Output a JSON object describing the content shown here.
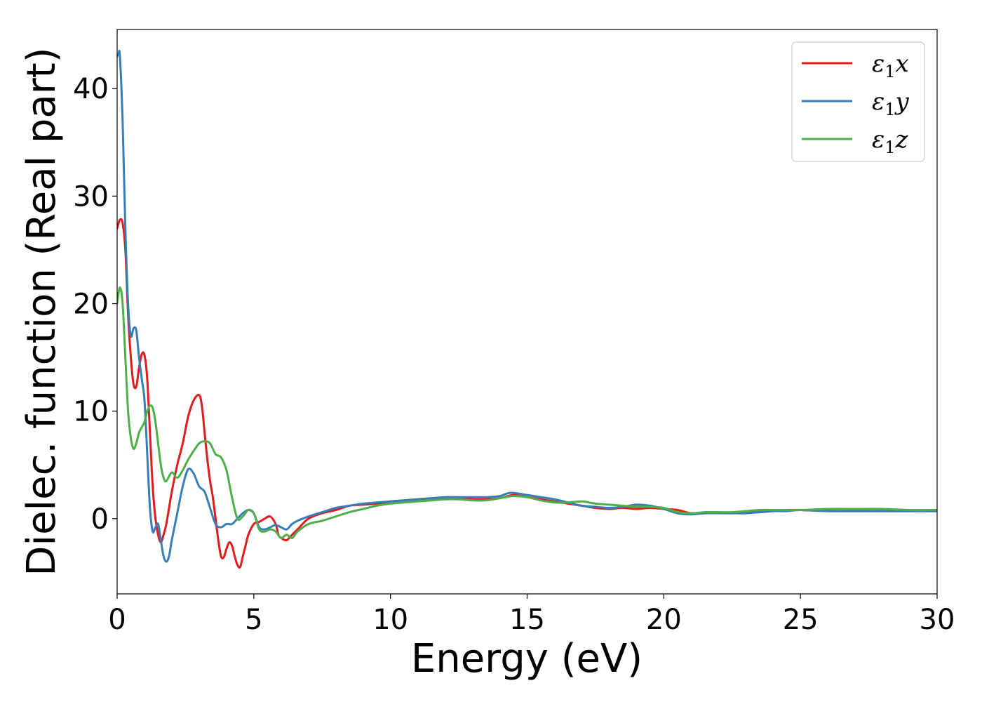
{
  "chart_data": {
    "type": "line",
    "title": "",
    "xlabel": "Energy (eV)",
    "ylabel": "Dielec. function (Real part)",
    "xlim": [
      0,
      30
    ],
    "ylim": [
      -7,
      45.5
    ],
    "xticks": [
      0,
      5,
      10,
      15,
      20,
      25,
      30
    ],
    "yticks": [
      0,
      10,
      20,
      30,
      40
    ],
    "grid": false,
    "legend_position": "top-right",
    "series": [
      {
        "name": "ε₁x",
        "legend_base": "ε",
        "legend_sub": "1",
        "legend_var": "x",
        "color": "#e41a1c",
        "x": [
          0.0,
          0.1,
          0.2,
          0.3,
          0.4,
          0.5,
          0.6,
          0.7,
          0.8,
          0.9,
          1.0,
          1.1,
          1.2,
          1.3,
          1.4,
          1.5,
          1.6,
          1.7,
          1.8,
          1.9,
          2.0,
          2.2,
          2.4,
          2.6,
          2.8,
          3.0,
          3.1,
          3.2,
          3.3,
          3.4,
          3.5,
          3.6,
          3.7,
          3.8,
          3.9,
          4.0,
          4.1,
          4.2,
          4.3,
          4.4,
          4.5,
          4.6,
          4.7,
          4.8,
          5.0,
          5.2,
          5.4,
          5.6,
          5.8,
          5.9,
          6.0,
          6.2,
          6.4,
          6.6,
          7.0,
          7.5,
          8.0,
          8.5,
          9.0,
          9.5,
          10.0,
          10.5,
          11.0,
          11.5,
          12.0,
          12.5,
          13.0,
          13.5,
          14.0,
          14.5,
          15.0,
          15.5,
          16.0,
          16.5,
          17.0,
          17.5,
          18.0,
          18.5,
          19.0,
          19.5,
          20.0,
          20.5,
          21.0,
          21.5,
          22.0,
          22.5,
          23.0,
          23.5,
          24.0,
          24.5,
          25.0,
          26.0,
          27.0,
          28.0,
          29.0,
          30.0
        ],
        "y": [
          27,
          27.8,
          27.5,
          25,
          19,
          15,
          12.5,
          12.3,
          14,
          15.3,
          15.2,
          13,
          8,
          3,
          0,
          -1.5,
          -2.2,
          -1.5,
          -0.5,
          1,
          2.5,
          5,
          7,
          9.5,
          11,
          11.5,
          10.5,
          8,
          5.5,
          3.5,
          2,
          0,
          -2,
          -3.5,
          -3.6,
          -2.8,
          -2.2,
          -2.5,
          -3.5,
          -4.3,
          -4.5,
          -3.5,
          -2.5,
          -1.5,
          -0.5,
          -0.3,
          0,
          0.2,
          -0.5,
          -1.5,
          -1.8,
          -2,
          -1.5,
          -1,
          0,
          0.5,
          0.8,
          1.2,
          1.3,
          1.4,
          1.6,
          1.7,
          1.8,
          1.9,
          1.9,
          1.9,
          1.8,
          1.8,
          1.9,
          2.2,
          2.0,
          1.8,
          1.6,
          1.4,
          1.2,
          1.0,
          0.9,
          1.0,
          0.9,
          1.0,
          0.9,
          0.8,
          0.5,
          0.5,
          0.6,
          0.5,
          0.6,
          0.6,
          0.7,
          0.8,
          0.8,
          0.7,
          0.7,
          0.7,
          0.7,
          0.7
        ]
      },
      {
        "name": "ε₁y",
        "legend_base": "ε",
        "legend_sub": "1",
        "legend_var": "y",
        "color": "#377eb8",
        "x": [
          0.0,
          0.05,
          0.1,
          0.2,
          0.3,
          0.4,
          0.5,
          0.6,
          0.7,
          0.8,
          0.9,
          1.0,
          1.1,
          1.2,
          1.3,
          1.4,
          1.5,
          1.6,
          1.7,
          1.8,
          1.9,
          2.0,
          2.2,
          2.4,
          2.6,
          2.8,
          3.0,
          3.2,
          3.4,
          3.6,
          3.8,
          4.0,
          4.2,
          4.4,
          4.6,
          4.8,
          5.0,
          5.2,
          5.4,
          5.6,
          5.8,
          6.0,
          6.2,
          6.4,
          6.6,
          7.0,
          7.5,
          8.0,
          8.5,
          9.0,
          9.5,
          10.0,
          10.5,
          11.0,
          11.5,
          12.0,
          12.5,
          13.0,
          13.5,
          14.0,
          14.4,
          15.0,
          15.5,
          16.0,
          16.5,
          17.0,
          17.5,
          18.0,
          18.5,
          19.0,
          19.5,
          20.0,
          20.5,
          21.0,
          21.5,
          22.0,
          22.5,
          23.0,
          23.5,
          24.0,
          24.5,
          25.0,
          26.0,
          27.0,
          28.0,
          29.0,
          30.0
        ],
        "y": [
          43,
          43.2,
          43,
          37,
          27,
          20,
          17,
          17.7,
          17.5,
          15,
          13,
          11,
          6,
          1,
          -1.2,
          -0.8,
          -0.5,
          -2,
          -3.5,
          -4,
          -3.5,
          -2,
          0.5,
          3,
          4.6,
          4.2,
          3,
          2.5,
          1,
          -0.5,
          -0.8,
          -0.5,
          -0.5,
          0,
          0.5,
          0.8,
          0.5,
          -0.8,
          -1,
          -0.8,
          -0.6,
          -0.8,
          -1,
          -0.5,
          -0.2,
          0.2,
          0.6,
          1.0,
          1.2,
          1.4,
          1.5,
          1.6,
          1.7,
          1.8,
          1.9,
          2.0,
          2.0,
          2.0,
          2.0,
          2.1,
          2.4,
          2.2,
          2.0,
          1.8,
          1.5,
          1.2,
          1.1,
          1.0,
          1.1,
          1.3,
          1.2,
          0.9,
          0.5,
          0.4,
          0.5,
          0.5,
          0.5,
          0.5,
          0.6,
          0.7,
          0.7,
          0.8,
          0.7,
          0.7,
          0.7,
          0.7,
          0.7
        ]
      },
      {
        "name": "ε₁z",
        "legend_base": "ε",
        "legend_sub": "1",
        "legend_var": "z",
        "color": "#4daf4a",
        "x": [
          0.0,
          0.1,
          0.2,
          0.3,
          0.4,
          0.5,
          0.6,
          0.7,
          0.8,
          0.9,
          1.0,
          1.1,
          1.2,
          1.3,
          1.4,
          1.5,
          1.6,
          1.7,
          1.8,
          2.0,
          2.2,
          2.4,
          2.6,
          2.8,
          3.0,
          3.2,
          3.4,
          3.6,
          3.8,
          4.0,
          4.2,
          4.4,
          4.6,
          4.8,
          5.0,
          5.2,
          5.4,
          5.6,
          5.8,
          6.0,
          6.2,
          6.4,
          6.6,
          7.0,
          7.5,
          8.0,
          8.5,
          9.0,
          9.5,
          10.0,
          10.5,
          11.0,
          11.5,
          12.0,
          12.5,
          13.0,
          13.5,
          14.0,
          14.5,
          15.0,
          15.5,
          16.0,
          16.5,
          17.0,
          17.5,
          18.0,
          18.5,
          19.0,
          19.5,
          20.0,
          20.5,
          21.0,
          21.5,
          22.0,
          22.5,
          23.0,
          23.5,
          24.0,
          24.5,
          25.0,
          26.0,
          27.0,
          28.0,
          29.0,
          30.0
        ],
        "y": [
          20,
          21.5,
          20,
          15,
          10,
          7.5,
          6.5,
          7,
          8,
          8.5,
          9,
          10,
          10.5,
          10.3,
          9,
          7,
          5,
          3.8,
          3.5,
          4.3,
          3.8,
          4.5,
          5.5,
          6.3,
          7.0,
          7.2,
          7.0,
          6,
          5.7,
          4.5,
          2,
          0,
          0.2,
          0.8,
          0.5,
          -1,
          -1.2,
          -1.0,
          -1.2,
          -1.8,
          -1.5,
          -1.8,
          -1.2,
          -0.5,
          -0.2,
          0.2,
          0.6,
          0.9,
          1.2,
          1.4,
          1.5,
          1.6,
          1.7,
          1.8,
          1.8,
          1.7,
          1.7,
          1.9,
          2.1,
          2.0,
          1.7,
          1.5,
          1.5,
          1.6,
          1.4,
          1.3,
          1.2,
          1.1,
          1.1,
          1.0,
          0.6,
          0.5,
          0.6,
          0.6,
          0.6,
          0.7,
          0.8,
          0.8,
          0.8,
          0.8,
          0.9,
          0.9,
          0.9,
          0.8,
          0.8
        ]
      }
    ]
  }
}
